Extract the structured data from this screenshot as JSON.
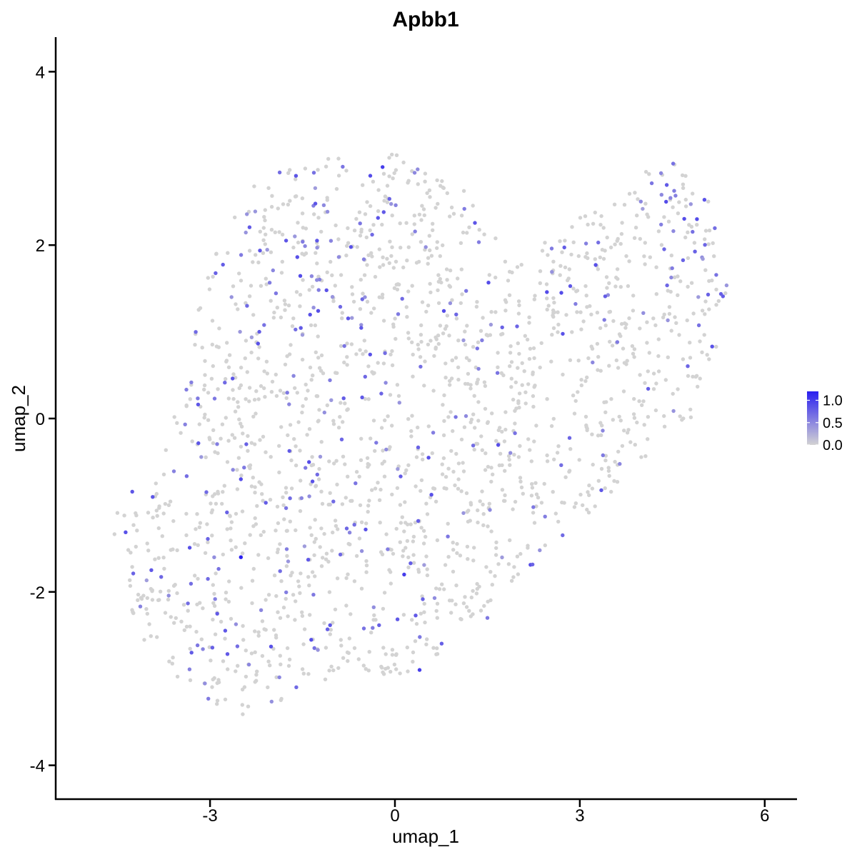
{
  "chart_data": {
    "type": "scatter",
    "title": "Apbb1",
    "xlabel": "umap_1",
    "ylabel": "umap_2",
    "xlim": [
      -5.9,
      6.5
    ],
    "ylim": [
      -4.3,
      4.4
    ],
    "x_ticks": [
      -3,
      0,
      3,
      6
    ],
    "y_ticks": [
      -4,
      -2,
      0,
      2,
      4
    ],
    "x_tick_labels": [
      "-3",
      "0",
      "3",
      "6"
    ],
    "y_tick_labels": [
      "-4",
      "-2",
      "0",
      "2",
      "4"
    ],
    "grid": false,
    "legend": {
      "placement": "right",
      "type": "colorbar",
      "range": [
        0.0,
        1.2
      ],
      "ticks": [
        0.0,
        0.5,
        1.0
      ],
      "tick_labels": [
        "0.0",
        "0.5",
        "1.0"
      ],
      "colors": {
        "low": "#d3d3d3",
        "high": "#2a1ff0"
      }
    },
    "n_points_approx": 1900,
    "cluster_outline": [
      [
        -4.7,
        -1.1
      ],
      [
        -4.4,
        -1.6
      ],
      [
        -4.2,
        -2.5
      ],
      [
        -3.6,
        -3.0
      ],
      [
        -3.0,
        -3.3
      ],
      [
        -2.5,
        -3.5
      ],
      [
        -2.0,
        -3.3
      ],
      [
        -1.4,
        -3.1
      ],
      [
        -0.8,
        -2.9
      ],
      [
        0.0,
        -3.0
      ],
      [
        0.6,
        -2.9
      ],
      [
        1.1,
        -2.4
      ],
      [
        1.6,
        -2.1
      ],
      [
        2.2,
        -1.8
      ],
      [
        2.8,
        -1.3
      ],
      [
        3.4,
        -1.0
      ],
      [
        3.8,
        -0.6
      ],
      [
        4.3,
        -0.3
      ],
      [
        4.8,
        0.0
      ],
      [
        5.2,
        0.6
      ],
      [
        5.4,
        1.5
      ],
      [
        5.3,
        2.4
      ],
      [
        4.9,
        2.7
      ],
      [
        4.5,
        3.0
      ],
      [
        4.0,
        2.9
      ],
      [
        3.7,
        2.6
      ],
      [
        3.2,
        2.4
      ],
      [
        2.7,
        2.2
      ],
      [
        2.1,
        1.9
      ],
      [
        1.7,
        2.2
      ],
      [
        1.2,
        2.6
      ],
      [
        0.6,
        2.9
      ],
      [
        0.1,
        3.1
      ],
      [
        -0.5,
        3.0
      ],
      [
        -1.2,
        3.0
      ],
      [
        -1.8,
        2.9
      ],
      [
        -2.3,
        2.7
      ],
      [
        -2.7,
        2.4
      ],
      [
        -3.0,
        1.9
      ],
      [
        -3.2,
        1.2
      ],
      [
        -3.3,
        0.6
      ],
      [
        -3.6,
        0.0
      ],
      [
        -3.9,
        -0.5
      ],
      [
        -4.3,
        -0.8
      ]
    ],
    "expressing_cells_sample": [
      {
        "x": -2.5,
        "y": -1.6,
        "value": 1.2
      },
      {
        "x": -0.2,
        "y": 2.9,
        "value": 1.0
      },
      {
        "x": 0.4,
        "y": -2.9,
        "value": 1.0
      },
      {
        "x": 0.15,
        "y": -1.8,
        "value": 1.0
      },
      {
        "x": 4.4,
        "y": 2.5,
        "value": 0.9
      },
      {
        "x": 4.9,
        "y": 2.3,
        "value": 0.9
      },
      {
        "x": -2.2,
        "y": 1.0,
        "value": 0.8
      },
      {
        "x": -2.5,
        "y": -0.7,
        "value": 0.9
      },
      {
        "x": -1.6,
        "y": -3.1,
        "value": 0.7
      },
      {
        "x": 2.7,
        "y": 1.45,
        "value": 0.9
      },
      {
        "x": -3.3,
        "y": -2.7,
        "value": 0.8
      },
      {
        "x": -0.4,
        "y": 2.8,
        "value": 0.9
      },
      {
        "x": 1.5,
        "y": -2.3,
        "value": 0.6
      },
      {
        "x": -2.4,
        "y": 1.3,
        "value": 0.7
      }
    ]
  }
}
